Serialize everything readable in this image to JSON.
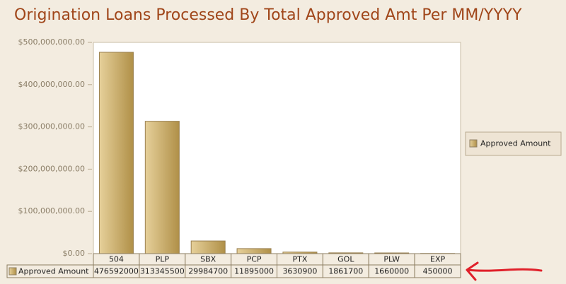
{
  "chart_data": {
    "type": "bar",
    "title": "Origination Loans Processed By Total Approved Amt Per MM/YYYY",
    "categories": [
      "504",
      "PLP",
      "SBX",
      "PCP",
      "PTX",
      "GOL",
      "PLW",
      "EXP"
    ],
    "series": [
      {
        "name": "Approved Amount",
        "color": "#c9ad6a",
        "values": [
          476592000,
          313345500,
          29984700,
          11895000,
          3630900,
          1861700,
          1660000,
          450000
        ]
      }
    ],
    "ylim": [
      0,
      500000000
    ],
    "yticks": [
      {
        "value": 0,
        "label": "$0.00"
      },
      {
        "value": 100000000,
        "label": "$100,000,000.00"
      },
      {
        "value": 200000000,
        "label": "$200,000,000.00"
      },
      {
        "value": 300000000,
        "label": "$300,000,000.00"
      },
      {
        "value": 400000000,
        "label": "$400,000,000.00"
      },
      {
        "value": 500000000,
        "label": "$500,000,000.00"
      }
    ],
    "legend": "right"
  }
}
